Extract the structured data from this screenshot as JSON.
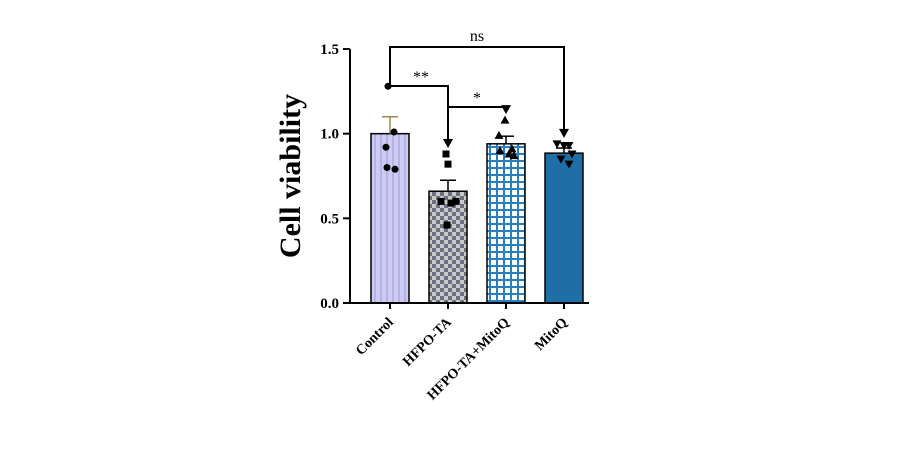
{
  "chart_data": {
    "type": "bar",
    "ylabel": "Cell viability",
    "xlabel": "",
    "title": "",
    "ylim": [
      0,
      1.5
    ],
    "yticks": [
      "0.0",
      "0.5",
      "1.0",
      "1.5"
    ],
    "categories": [
      "Control",
      "HFPO-TA",
      "HFPO-TA+MitoQ",
      "MitoQ"
    ],
    "values": [
      1.0,
      0.66,
      0.94,
      0.885
    ],
    "errors": [
      0.1,
      0.065,
      0.045,
      0.03
    ],
    "points": [
      [
        1.28,
        1.01,
        0.92,
        0.8,
        0.79
      ],
      [
        0.88,
        0.82,
        0.6,
        0.59,
        0.6,
        0.46
      ],
      [
        1.08,
        0.99,
        0.91,
        0.9,
        0.88,
        0.87
      ],
      [
        0.94,
        0.93,
        0.93,
        0.88,
        0.85,
        0.82
      ]
    ],
    "fills": [
      "#c9c7f2",
      "checker",
      "grid",
      "#1f6ea5"
    ],
    "markers": [
      "circle",
      "square",
      "triangle-up",
      "triangle-down"
    ],
    "significance": [
      {
        "from": 0,
        "to": 3,
        "label": "ns"
      },
      {
        "from": 0,
        "to": 1,
        "label": "**"
      },
      {
        "from": 1,
        "to": 2,
        "label": "*"
      }
    ]
  }
}
